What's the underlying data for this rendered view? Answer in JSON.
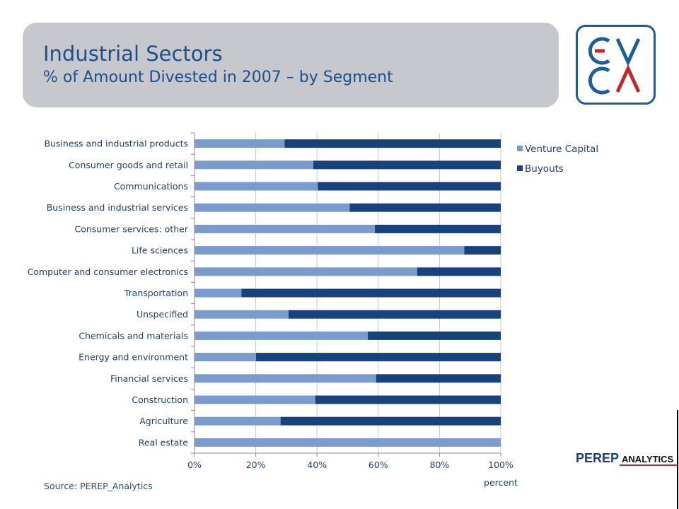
{
  "header": {
    "title": "Industrial Sectors",
    "subtitle": "% of Amount Divested in 2007 – by Segment"
  },
  "logos": {
    "evca_letters": "EVCA",
    "perep_word": "PEREP",
    "perep_analytics": "ANALYTICS"
  },
  "source": "Source: PEREP_Analytics",
  "colors": {
    "venture_capital": "#7b9bcd",
    "buyouts": "#18427c",
    "text": "#1f4e8c",
    "panel": "#c6c8ce"
  },
  "chart_data": {
    "type": "bar",
    "orientation": "horizontal",
    "stacked": "percent",
    "categories": [
      "Business and industrial products",
      "Consumer goods and retail",
      "Communications",
      "Business and industrial services",
      "Consumer services: other",
      "Life sciences",
      "Computer and consumer electronics",
      "Transportation",
      "Unspecified",
      "Chemicals and materials",
      "Energy and environment",
      "Financial services",
      "Construction",
      "Agriculture",
      "Real estate"
    ],
    "series": [
      {
        "name": "Venture Capital",
        "values": [
          29.4,
          38.8,
          40.3,
          50.7,
          58.9,
          88.1,
          72.7,
          15.3,
          30.7,
          56.6,
          20.1,
          59.3,
          39.4,
          28.1,
          100
        ]
      },
      {
        "name": "Buyouts",
        "values": [
          70.6,
          61.2,
          59.7,
          49.3,
          41.1,
          11.9,
          27.3,
          84.7,
          69.3,
          43.4,
          79.9,
          40.7,
          60.6,
          71.9,
          0
        ]
      }
    ],
    "xlim": [
      0,
      100
    ],
    "xticks": [
      "0%",
      "20%",
      "40%",
      "60%",
      "80%",
      "100%"
    ],
    "xlabel": "percent",
    "ylabel": "",
    "grid": true,
    "legend_position": "right"
  }
}
